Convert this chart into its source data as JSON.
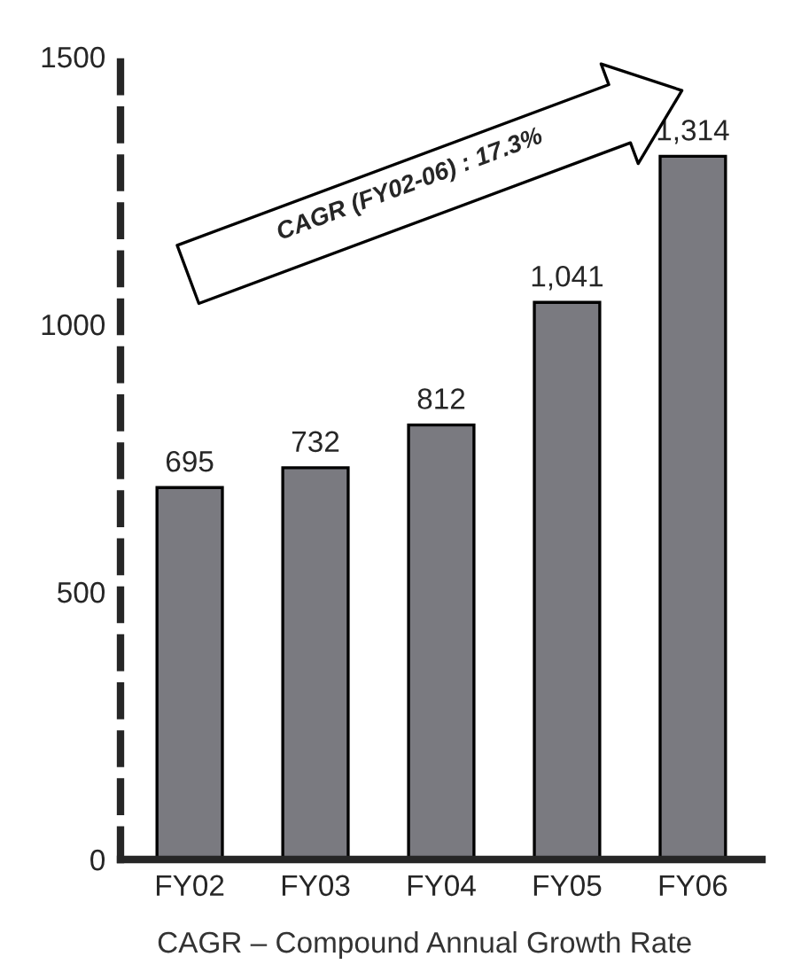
{
  "chart_data": {
    "type": "bar",
    "categories": [
      "FY02",
      "FY03",
      "FY04",
      "FY05",
      "FY06"
    ],
    "values": [
      695,
      732,
      812,
      1041,
      1314
    ],
    "color": "#7a7a80",
    "ylim": [
      0,
      1500
    ],
    "yticks": [
      0,
      500,
      1000,
      1500
    ],
    "grid": false,
    "value_labels": [
      "695",
      "732",
      "812",
      "1,041",
      "1,314"
    ],
    "annotations": [
      "CAGR (FY02-06) : 17.3%",
      "CAGR – Compound Annual Growth Rate"
    ]
  }
}
